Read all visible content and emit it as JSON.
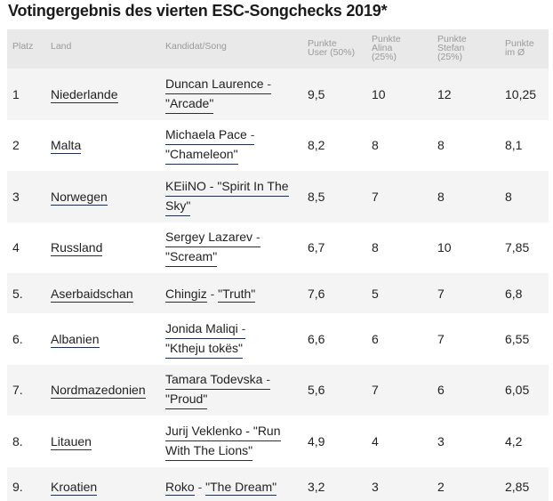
{
  "title": "Votingergebnis des vierten ESC-Songchecks 2019*",
  "headers": {
    "platz": "Platz",
    "land": "Land",
    "kandidat": "Kandidat/Song",
    "user_1": "Punkte",
    "user_2": "User (50%)",
    "alina_1": "Punkte",
    "alina_2": "Alina",
    "alina_3": "(25%)",
    "stefan_1": "Punkte",
    "stefan_2": "Stefan",
    "stefan_3": "(25%)",
    "avg_1": "Punkte",
    "avg_2": "im Ø"
  },
  "rows": [
    {
      "platz": "1",
      "land": "Niederlande",
      "artist": "Duncan Laurence",
      "song_line1": "",
      "song_line2": "\"Arcade\"",
      "user": "9,5",
      "alina": "10",
      "stefan": "12",
      "avg": "10,25"
    },
    {
      "platz": "2",
      "land": "Malta",
      "artist": "Michaela Pace",
      "song_line1": "",
      "song_line2": "\"Chameleon\"",
      "user": "8,2",
      "alina": "8",
      "stefan": "8",
      "avg": "8,1"
    },
    {
      "platz": "3",
      "land": "Norwegen",
      "artist": "KEiiNO",
      "song_line1": "\"Spirit In The",
      "song_line2": "Sky\"",
      "user": "8,5",
      "alina": "7",
      "stefan": "8",
      "avg": "8"
    },
    {
      "platz": "4",
      "land": "Russland",
      "artist": "Sergey Lazarev",
      "song_line1": "",
      "song_line2": "\"Scream\"",
      "user": "6,7",
      "alina": "8",
      "stefan": "10",
      "avg": "7,85"
    },
    {
      "platz": "5.",
      "land": "Aserbaidschan",
      "artist": "Chingiz",
      "song_line1": "\"Truth\"",
      "song_line2": "",
      "user": "7,6",
      "alina": "5",
      "stefan": "7",
      "avg": "6,8"
    },
    {
      "platz": "6.",
      "land": "Albanien",
      "artist": "Jonida Maliqi",
      "song_line1": "",
      "song_line2": "\"Ktheju tokës\"",
      "user": "6,6",
      "alina": "6",
      "stefan": "7",
      "avg": "6,55"
    },
    {
      "platz": "7.",
      "land": "Nordmazedonien",
      "artist": "Tamara Todevska",
      "song_line1": "",
      "song_line2": "\"Proud\"",
      "user": "5,6",
      "alina": "7",
      "stefan": "6",
      "avg": "6,05"
    },
    {
      "platz": "8.",
      "land": "Litauen",
      "artist": "Jurij Veklenko",
      "song_line1": "\"Run",
      "song_line2": "With The Lions\"",
      "user": "4,9",
      "alina": "4",
      "stefan": "3",
      "avg": "4,2"
    },
    {
      "platz": "9.",
      "land": "Kroatien",
      "artist": "Roko",
      "song_line1": "\"The Dream\"",
      "song_line2": "",
      "user": "3,2",
      "alina": "3",
      "stefan": "2",
      "avg": "2,85"
    }
  ]
}
